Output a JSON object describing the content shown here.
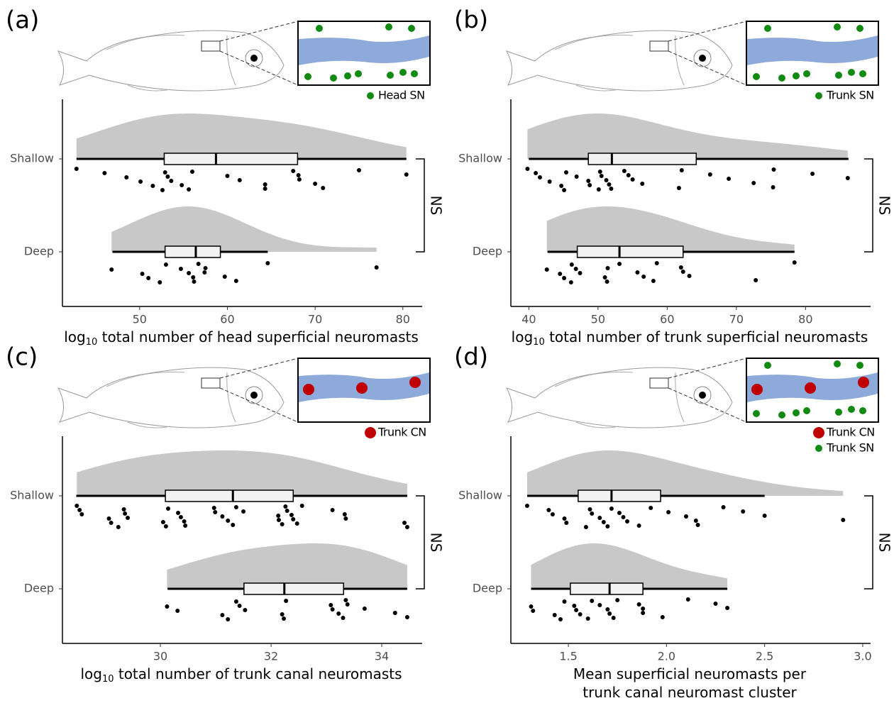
{
  "chart_data": [
    {
      "type": "raincloud",
      "panel": "(a)",
      "xlabel": {
        "log": "log",
        "base": "10",
        "text": "total number of head superficial neuromasts"
      },
      "categories": [
        "Shallow",
        "Deep"
      ],
      "groups": [
        {
          "points": [
            42.8,
            46.0,
            48.5,
            50.1,
            51.5,
            52.6,
            52.9,
            53.2,
            53.6,
            54.8,
            55.6,
            56.0,
            60.0,
            61.4,
            64.3,
            64.3,
            67.5,
            68.1,
            68.2,
            70.0,
            70.9,
            75.0,
            80.4
          ],
          "box": {
            "min": 42.8,
            "q1": 52.8,
            "median": 58.7,
            "q3": 68.0,
            "max": 80.4
          }
        },
        {
          "points": [
            46.8,
            50.3,
            51.0,
            52.3,
            53.0,
            54.7,
            55.6,
            56.1,
            56.2,
            56.7,
            57.5,
            57.4,
            59.7,
            61.0,
            64.6,
            77.0
          ],
          "box": {
            "min": 46.9,
            "q1": 52.9,
            "median": 56.4,
            "q3": 59.2,
            "max": 64.6
          }
        }
      ],
      "xlim": [
        41.2,
        82.2
      ],
      "xticks": [
        50,
        60,
        70,
        80
      ],
      "significance": "NS",
      "cloud_color": "#c8c8c8",
      "legend": [
        {
          "label": "Head SN",
          "color": "#118a11",
          "marker": "small"
        }
      ]
    },
    {
      "type": "raincloud",
      "panel": "(b)",
      "xlabel": {
        "log": "log",
        "base": "10",
        "text": "total number of trunk superficial neuromasts"
      },
      "categories": [
        "Shallow",
        "Deep"
      ],
      "groups": [
        {
          "points": [
            39.8,
            41.0,
            41.6,
            43.0,
            44.7,
            45.1,
            45.4,
            46.9,
            48.6,
            48.8,
            50.1,
            50.3,
            50.5,
            51.2,
            51.6,
            51.9,
            53.8,
            54.4,
            55.0,
            56.4,
            61.7,
            62.1,
            66.2,
            68.9,
            72.5,
            75.3,
            75.4,
            81.0,
            86.1
          ],
          "box": {
            "min": 40.0,
            "q1": 48.6,
            "median": 52.0,
            "q3": 64.2,
            "max": 86.2
          }
        },
        {
          "points": [
            42.6,
            44.5,
            45.1,
            46.1,
            46.2,
            46.8,
            47.4,
            51.0,
            51.3,
            53.1,
            51.4,
            55.7,
            56.6,
            58.0,
            58.5,
            62.0,
            62.3,
            63.2,
            72.8,
            78.4
          ],
          "box": {
            "min": 42.7,
            "q1": 47.0,
            "median": 53.1,
            "q3": 62.3,
            "max": 78.4
          }
        }
      ],
      "xlim": [
        37.4,
        89.4
      ],
      "xticks": [
        40,
        50,
        60,
        70,
        80
      ],
      "significance": "NS",
      "cloud_color": "#c8c8c8",
      "legend": [
        {
          "label": "Trunk SN",
          "color": "#118a11",
          "marker": "small"
        }
      ]
    },
    {
      "type": "raincloud",
      "panel": "(c)",
      "xlabel": {
        "log": "log",
        "base": "10",
        "text": "total number of trunk canal neuromasts"
      },
      "categories": [
        "Shallow",
        "Deep"
      ],
      "groups": [
        {
          "points": [
            28.49,
            28.54,
            28.58,
            29.07,
            29.11,
            29.24,
            29.34,
            29.36,
            29.41,
            30.05,
            30.1,
            30.14,
            30.32,
            30.37,
            30.43,
            30.45,
            30.97,
            30.99,
            31.12,
            31.22,
            31.31,
            31.37,
            31.5,
            32.13,
            32.14,
            32.2,
            32.26,
            32.29,
            32.37,
            32.4,
            32.47,
            32.56,
            33.11,
            33.33,
            33.35,
            34.41,
            34.46
          ],
          "box": {
            "min": 28.48,
            "q1": 30.09,
            "median": 31.31,
            "q3": 32.4,
            "max": 34.46
          }
        },
        {
          "points": [
            30.12,
            30.31,
            31.12,
            31.22,
            31.37,
            31.43,
            31.53,
            32.2,
            32.23,
            32.27,
            33.08,
            33.11,
            33.22,
            33.3,
            33.35,
            33.38,
            33.69,
            34.24,
            34.46
          ],
          "box": {
            "min": 30.13,
            "q1": 31.51,
            "median": 32.24,
            "q3": 33.31,
            "max": 34.46
          }
        }
      ],
      "xlim": [
        28.23,
        34.73
      ],
      "xticks": [
        30,
        32,
        34
      ],
      "significance": "NS",
      "cloud_color": "#c8c8c8",
      "legend": [
        {
          "label": "Trunk CN",
          "color": "#c00000",
          "marker": "large"
        }
      ]
    },
    {
      "type": "raincloud",
      "panel": "(d)",
      "xlabel": [
        "Mean superficial neuromasts per",
        "trunk canal neuromast cluster"
      ],
      "categories": [
        "Shallow",
        "Deep"
      ],
      "groups": [
        {
          "points": [
            1.29,
            1.4,
            1.42,
            1.48,
            1.49,
            1.59,
            1.61,
            1.62,
            1.66,
            1.68,
            1.7,
            1.72,
            1.76,
            1.78,
            1.8,
            1.86,
            1.92,
            2.01,
            2.1,
            2.15,
            2.16,
            2.29,
            2.39,
            2.5,
            2.9
          ],
          "box": {
            "min": 1.29,
            "q1": 1.55,
            "median": 1.72,
            "q3": 1.97,
            "max": 2.5
          }
        },
        {
          "points": [
            1.31,
            1.32,
            1.43,
            1.46,
            1.48,
            1.53,
            1.54,
            1.56,
            1.6,
            1.62,
            1.66,
            1.7,
            1.71,
            1.73,
            1.75,
            1.86,
            1.88,
            1.88,
            1.98,
            2.11,
            2.25,
            2.31
          ],
          "box": {
            "min": 1.31,
            "q1": 1.51,
            "median": 1.71,
            "q3": 1.88,
            "max": 2.31
          }
        }
      ],
      "xlim": [
        1.207,
        3.04
      ],
      "xticks": [
        1.5,
        {
          "value": 2,
          "label": "2.0"
        },
        2.5,
        {
          "value": 3,
          "label": "3.0"
        }
      ],
      "significance": "NS",
      "cloud_color": "#c8c8c8",
      "legend": [
        {
          "label": "Trunk CN",
          "color": "#c00000",
          "marker": "large"
        },
        {
          "label": "Trunk SN",
          "color": "#118a11",
          "marker": "small"
        }
      ]
    }
  ]
}
